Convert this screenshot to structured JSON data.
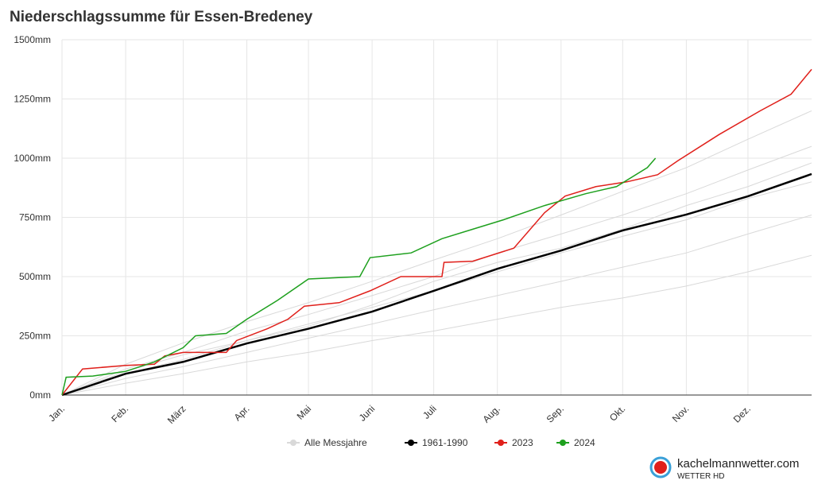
{
  "chart_data": {
    "type": "line",
    "title": "Niederschlagssumme für Essen-Bredeney",
    "xlim": [
      0,
      365
    ],
    "xticks": [
      {
        "value": 0,
        "label": "Jan."
      },
      {
        "value": 31,
        "label": "Feb."
      },
      {
        "value": 59,
        "label": "März"
      },
      {
        "value": 90,
        "label": "Apr."
      },
      {
        "value": 120,
        "label": "Mai"
      },
      {
        "value": 151,
        "label": "Juni"
      },
      {
        "value": 181,
        "label": "Juli"
      },
      {
        "value": 212,
        "label": "Aug."
      },
      {
        "value": 243,
        "label": "Sep."
      },
      {
        "value": 273,
        "label": "Okt."
      },
      {
        "value": 304,
        "label": "Nov."
      },
      {
        "value": 334,
        "label": "Dez."
      }
    ],
    "ylim": [
      0,
      1500
    ],
    "yticks": [
      {
        "value": 0,
        "label": "0mm"
      },
      {
        "value": 250,
        "label": "250mm"
      },
      {
        "value": 500,
        "label": "500mm"
      },
      {
        "value": 750,
        "label": "750mm"
      },
      {
        "value": 1000,
        "label": "1000mm"
      },
      {
        "value": 1250,
        "label": "1250mm"
      },
      {
        "value": 1500,
        "label": "1500mm"
      }
    ],
    "grid": true,
    "legend": "bottom",
    "series": [
      {
        "name": "Alle Messjahre",
        "color": "#d9d9d9",
        "x": [
          0,
          31,
          59,
          90,
          120,
          151,
          181,
          212,
          243,
          273,
          304,
          334,
          365
        ],
        "lines": [
          [
            0,
            50,
            90,
            140,
            180,
            230,
            270,
            320,
            370,
            410,
            460,
            520,
            590
          ],
          [
            0,
            70,
            120,
            180,
            240,
            300,
            360,
            420,
            480,
            540,
            600,
            680,
            760
          ],
          [
            0,
            90,
            150,
            230,
            300,
            370,
            440,
            520,
            600,
            670,
            740,
            830,
            900
          ],
          [
            0,
            110,
            180,
            270,
            340,
            420,
            500,
            600,
            680,
            760,
            850,
            950,
            1050
          ],
          [
            0,
            130,
            220,
            310,
            390,
            480,
            570,
            660,
            760,
            860,
            960,
            1080,
            1200
          ],
          [
            0,
            100,
            170,
            230,
            290,
            380,
            480,
            560,
            620,
            700,
            800,
            880,
            980
          ]
        ]
      },
      {
        "name": "1961-1990",
        "color": "#000000",
        "x": [
          0,
          31,
          59,
          90,
          120,
          151,
          181,
          212,
          243,
          273,
          304,
          334,
          365
        ],
        "values": [
          0,
          90,
          140,
          218,
          280,
          352,
          440,
          533,
          610,
          695,
          762,
          839,
          933
        ]
      },
      {
        "name": "2023",
        "color": "#e0201b",
        "x": [
          0,
          10,
          31,
          45,
          50,
          59,
          80,
          85,
          100,
          110,
          118,
          135,
          150,
          165,
          185,
          186,
          200,
          220,
          235,
          245,
          260,
          275,
          290,
          300,
          320,
          340,
          355,
          365
        ],
        "values": [
          0,
          110,
          125,
          130,
          165,
          180,
          180,
          230,
          280,
          320,
          375,
          390,
          440,
          500,
          500,
          560,
          565,
          620,
          770,
          840,
          880,
          900,
          930,
          990,
          1100,
          1200,
          1270,
          1375
        ]
      },
      {
        "name": "2024",
        "color": "#1ea01e",
        "x": [
          0,
          2,
          15,
          31,
          45,
          59,
          65,
          80,
          90,
          105,
          120,
          145,
          150,
          170,
          185,
          200,
          215,
          235,
          255,
          270,
          285,
          289
        ],
        "values": [
          0,
          75,
          80,
          100,
          140,
          200,
          250,
          260,
          320,
          400,
          490,
          500,
          580,
          600,
          660,
          700,
          740,
          800,
          850,
          880,
          960,
          1000
        ]
      }
    ]
  },
  "logo": {
    "brand": "kachelmannwetter.com",
    "sub": "WETTER HD"
  }
}
